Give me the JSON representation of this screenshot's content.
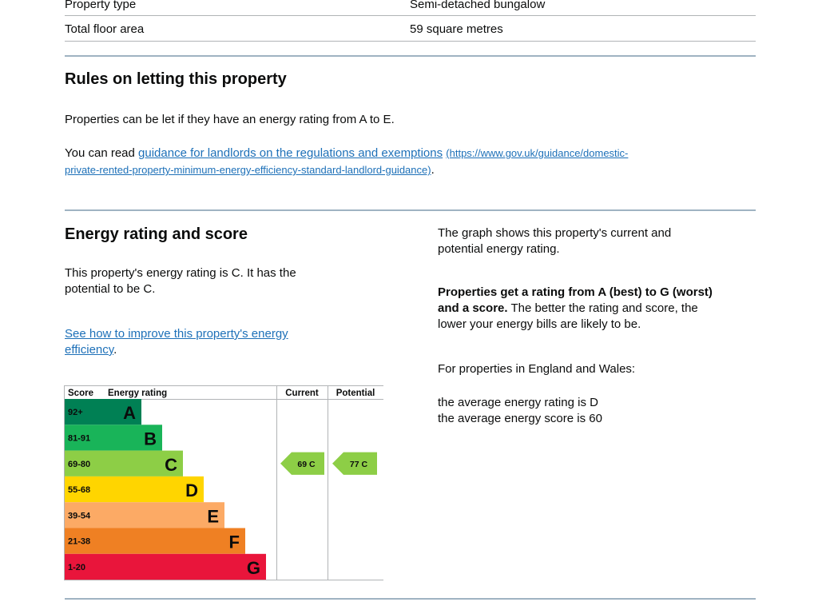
{
  "summary": {
    "rows": [
      {
        "label": "Property type",
        "value": "Semi-detached bungalow"
      },
      {
        "label": "Total floor area",
        "value": "59 square metres"
      }
    ]
  },
  "letting": {
    "heading": "Rules on letting this property",
    "rule": "Properties can be let if they have an energy rating from A to E.",
    "read_prefix": "You can read",
    "link_text": "guidance for landlords on the regulations and exemptions",
    "link_url_line1": "(https://www.gov.uk/guidance/domestic-",
    "link_url_line2": "private-rented-property-minimum-energy-efficiency-standard-landlord-guidance)",
    "link_suffix": "."
  },
  "energy": {
    "heading": "Energy rating and score",
    "rating_text_line1": "This property's energy rating is C. It has the",
    "rating_text_line2": "potential to be C.",
    "improve_link_line1": "See how to improve this property's energy",
    "improve_link_line2": "efficiency",
    "improve_suffix": ".",
    "graph_desc_line1": "The graph shows this property's current and",
    "graph_desc_line2": "potential energy rating.",
    "bold_line1": "Properties get a rating from A (best) to G (worst)",
    "bold_line2": "and a score.",
    "rest_line2": " The better the rating and score, the",
    "rest_line3": "lower your energy bills are likely to be.",
    "ew_intro": "For properties in England and Wales:",
    "avg_rating": "the average energy rating is D",
    "avg_score": "the average energy score is 60"
  },
  "chart_data": {
    "type": "bar",
    "headers": {
      "score": "Score",
      "rating": "Energy rating",
      "current": "Current",
      "potential": "Potential"
    },
    "bands": [
      {
        "letter": "A",
        "range": "92+",
        "color": "#008054"
      },
      {
        "letter": "B",
        "range": "81-91",
        "color": "#19b459"
      },
      {
        "letter": "C",
        "range": "69-80",
        "color": "#8dce46"
      },
      {
        "letter": "D",
        "range": "55-68",
        "color": "#ffd500"
      },
      {
        "letter": "E",
        "range": "39-54",
        "color": "#fcaa65"
      },
      {
        "letter": "F",
        "range": "21-38",
        "color": "#ef8023"
      },
      {
        "letter": "G",
        "range": "1-20",
        "color": "#e9153b"
      }
    ],
    "current": {
      "score": 69,
      "band": "C",
      "label": "69 C"
    },
    "potential": {
      "score": 77,
      "band": "C",
      "label": "77 C"
    }
  }
}
